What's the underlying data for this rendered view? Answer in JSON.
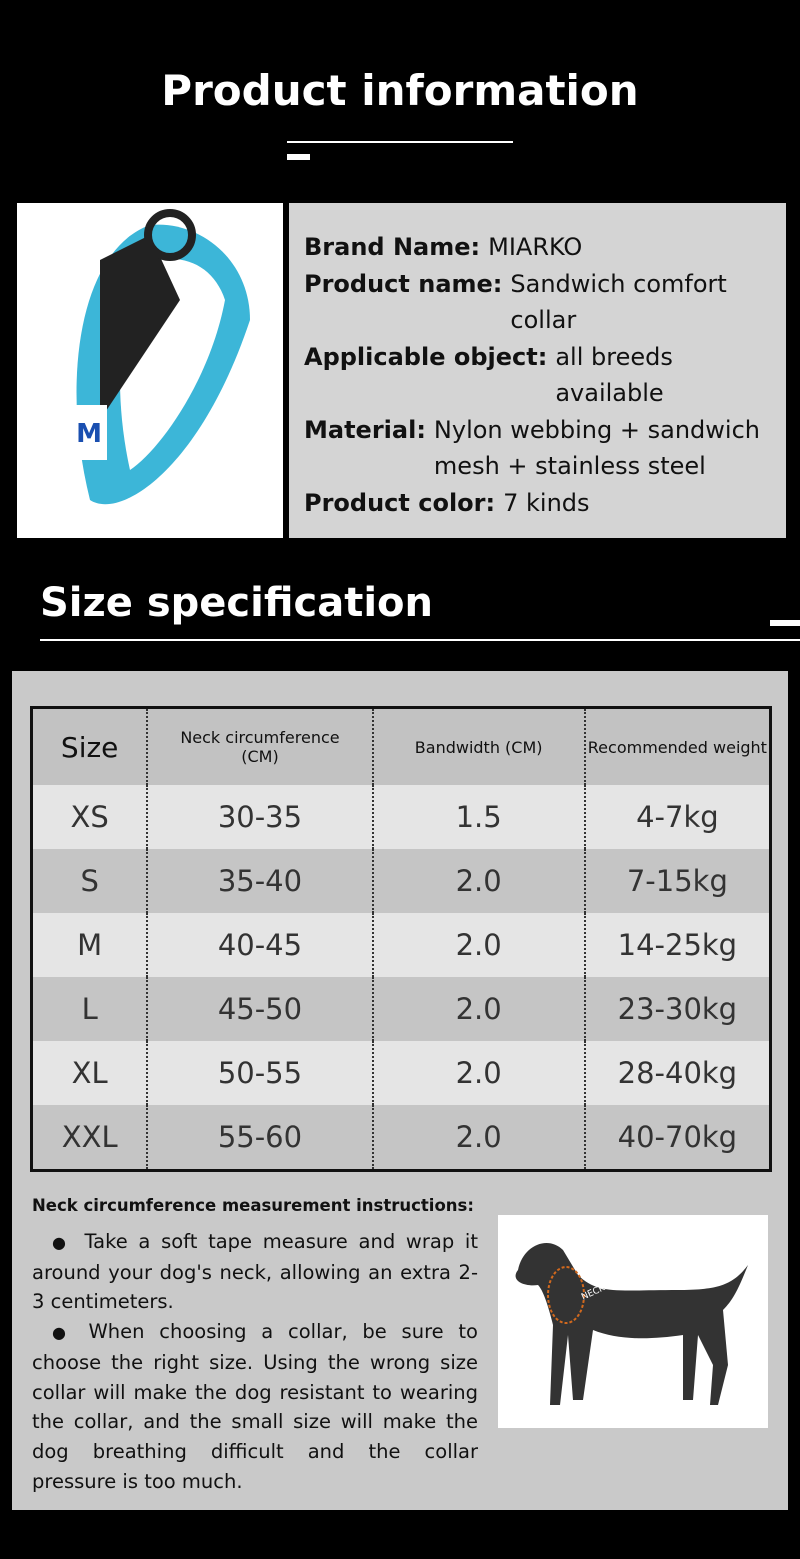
{
  "header": {
    "title": "Product information"
  },
  "info": [
    {
      "label": "Brand Name:",
      "value": "MIARKO"
    },
    {
      "label": "Product name:",
      "value": "Sandwich comfort collar"
    },
    {
      "label": "Applicable object:",
      "value": "all breeds available"
    },
    {
      "label": "Material:",
      "value": "Nylon webbing + sandwich mesh + stainless steel"
    },
    {
      "label": "Product color:",
      "value": "7 kinds"
    }
  ],
  "size_section": {
    "title": "Size specification"
  },
  "table": {
    "header": [
      "Size",
      "Neck circumference (CM)",
      "Bandwidth (CM)",
      "Recommended weight"
    ],
    "rows": [
      [
        "XS",
        "30-35",
        "1.5",
        "4-7kg"
      ],
      [
        "S",
        "35-40",
        "2.0",
        "7-15kg"
      ],
      [
        "M",
        "40-45",
        "2.0",
        "14-25kg"
      ],
      [
        "L",
        "45-50",
        "2.0",
        "23-30kg"
      ],
      [
        "XL",
        "50-55",
        "2.0",
        "28-40kg"
      ],
      [
        "XXL",
        "55-60",
        "2.0",
        "40-70kg"
      ]
    ]
  },
  "instructions": {
    "title": "Neck circumference measurement instructions:",
    "paragraphs": [
      "Take a soft tape measure and wrap it around your dog's neck, allowing an extra 2-3 centimeters.",
      "When choosing a collar, be sure to choose the right size. Using the wrong size collar will make the dog resistant to wearing the collar, and the small size will make the dog breathing difficult and the collar pressure is too much."
    ]
  },
  "dog_image": {
    "label": "NECK"
  }
}
